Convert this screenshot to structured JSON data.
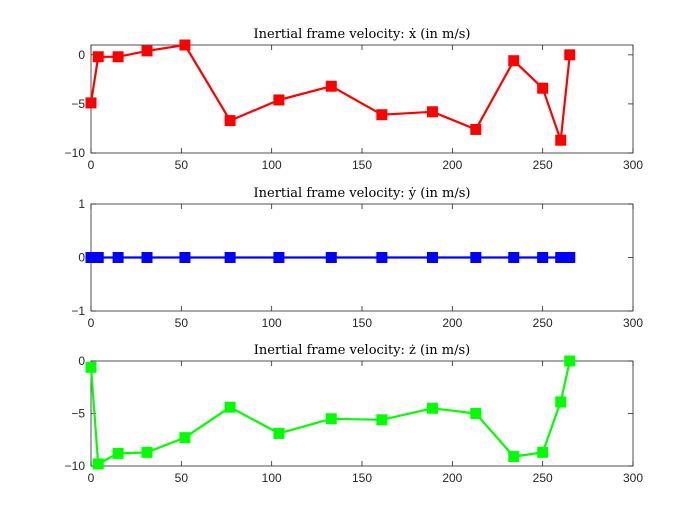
{
  "chart_data": [
    {
      "type": "line",
      "title": "Inertial frame velocity: ẋ (in m/s)",
      "xlabel": "",
      "ylabel": "",
      "xlim": [
        0,
        300
      ],
      "ylim": [
        -10,
        1
      ],
      "xticks": [
        0,
        50,
        100,
        150,
        200,
        250,
        300
      ],
      "yticks": [
        0,
        -5,
        -10
      ],
      "grid": false,
      "series": [
        {
          "color": "#ff0000",
          "marker": "square",
          "x": [
            0,
            4,
            15,
            31,
            52,
            77,
            104,
            133,
            161,
            189,
            213,
            234,
            250,
            260,
            265
          ],
          "y": [
            -4.9,
            -0.2,
            -0.2,
            0.4,
            1.0,
            -6.7,
            -4.6,
            -3.2,
            -6.1,
            -5.8,
            -7.6,
            -0.6,
            -3.4,
            -8.7,
            0.0
          ]
        }
      ]
    },
    {
      "type": "line",
      "title": "Inertial frame velocity: ẏ (in m/s)",
      "xlabel": "",
      "ylabel": "",
      "xlim": [
        0,
        300
      ],
      "ylim": [
        -1,
        1
      ],
      "xticks": [
        0,
        50,
        100,
        150,
        200,
        250,
        300
      ],
      "yticks": [
        1,
        0,
        -1
      ],
      "grid": false,
      "series": [
        {
          "color": "#0000ff",
          "marker": "square",
          "x": [
            0,
            4,
            15,
            31,
            52,
            77,
            104,
            133,
            161,
            189,
            213,
            234,
            250,
            260,
            265
          ],
          "y": [
            0,
            0,
            0,
            0,
            0,
            0,
            0,
            0,
            0,
            0,
            0,
            0,
            0,
            0,
            0
          ]
        }
      ]
    },
    {
      "type": "line",
      "title": "Inertial frame velocity: ż (in m/s)",
      "xlabel": "",
      "ylabel": "",
      "xlim": [
        0,
        300
      ],
      "ylim": [
        -10,
        0
      ],
      "xticks": [
        0,
        50,
        100,
        150,
        200,
        250,
        300
      ],
      "yticks": [
        0,
        -5,
        -10
      ],
      "grid": false,
      "series": [
        {
          "color": "#00ff00",
          "marker": "square",
          "x": [
            0,
            4,
            15,
            31,
            52,
            77,
            104,
            133,
            161,
            189,
            213,
            234,
            250,
            260,
            265
          ],
          "y": [
            -0.6,
            -9.8,
            -8.8,
            -8.7,
            -7.3,
            -4.4,
            -6.9,
            -5.5,
            -5.6,
            -4.5,
            -5.0,
            -9.1,
            -8.7,
            -3.9,
            0.0
          ]
        }
      ]
    }
  ]
}
